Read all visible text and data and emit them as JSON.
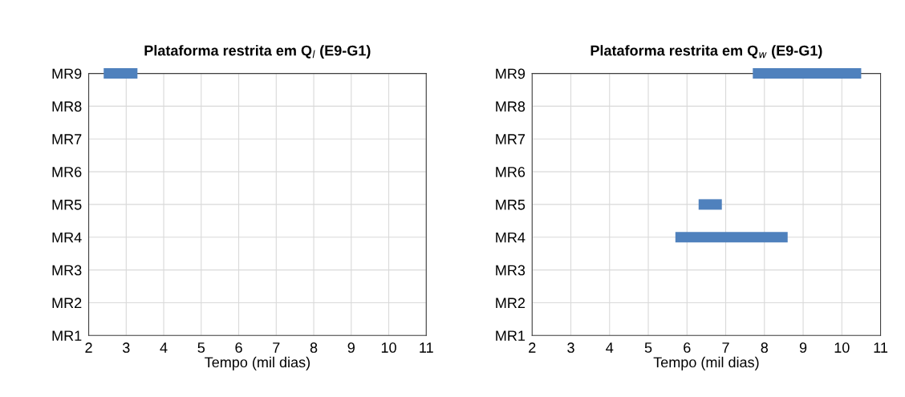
{
  "chart_data": [
    {
      "type": "bar",
      "orientation": "horizontal",
      "title": "Plataforma restrita em Q$_{l}$ (E9-G1)",
      "xlabel": "Tempo (mil dias)",
      "categories": [
        "MR9",
        "MR8",
        "MR7",
        "MR6",
        "MR5",
        "MR4",
        "MR3",
        "MR2",
        "MR1"
      ],
      "base": [
        2.4,
        null,
        null,
        null,
        null,
        null,
        null,
        null,
        null
      ],
      "values": [
        0.9,
        null,
        null,
        null,
        null,
        null,
        null,
        null,
        null
      ],
      "color": "#4f81bd",
      "xlim": [
        2,
        11
      ],
      "xticks": [
        2,
        3,
        4,
        5,
        6,
        7,
        8,
        9,
        10,
        11
      ],
      "grid": true
    },
    {
      "type": "bar",
      "orientation": "horizontal",
      "title": "Plataforma restrita em Q$_{w}$ (E9-G1)",
      "xlabel": "Tempo (mil dias)",
      "categories": [
        "MR9",
        "MR8",
        "MR7",
        "MR6",
        "MR5",
        "MR4",
        "MR3",
        "MR2",
        "MR1"
      ],
      "base": [
        7.7,
        null,
        null,
        null,
        6.3,
        5.7,
        null,
        null,
        null
      ],
      "values": [
        2.8,
        null,
        null,
        null,
        0.6,
        2.9,
        null,
        null,
        null
      ],
      "color": "#4f81bd",
      "xlim": [
        2,
        11
      ],
      "xticks": [
        2,
        3,
        4,
        5,
        6,
        7,
        8,
        9,
        10,
        11
      ],
      "grid": true
    }
  ]
}
